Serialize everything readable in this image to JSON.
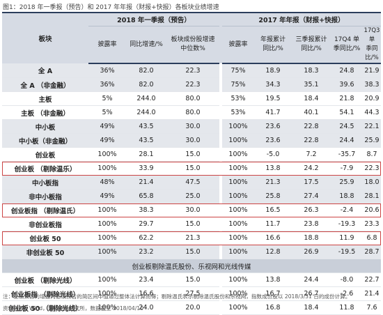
{
  "title": "图1：2018 年一季报（预告）和 2017 年年报（财报+快报）各板块业绩增速",
  "header": {
    "col0": "板块",
    "group1": "2018 年一季报（预告）",
    "group2": "2017 年年报（财报+快报）",
    "sub": [
      "披露率",
      "同比增速/%",
      "板块成份股增速\n中位数%",
      "披露率",
      "年报累计\n同比/%",
      "三季报累计\n同比/%",
      "17Q4 单\n季同比/%",
      "17Q3 单\n季同比/%"
    ]
  },
  "rows": [
    {
      "type": "gray",
      "cells": [
        "全 A",
        "36%",
        "82.0",
        "22.3",
        "75%",
        "18.9",
        "18.3",
        "24.8",
        "21.9"
      ]
    },
    {
      "type": "gray",
      "cells": [
        "全 A （非金融）",
        "36%",
        "82.0",
        "22.3",
        "75%",
        "34.3",
        "35.1",
        "39.6",
        "38.3"
      ]
    },
    {
      "type": "plain",
      "cells": [
        "主板",
        "5%",
        "244.0",
        "80.0",
        "53%",
        "19.5",
        "18.4",
        "21.8",
        "20.9"
      ]
    },
    {
      "type": "plain",
      "cells": [
        "主板 （非金融）",
        "5%",
        "244.0",
        "80.0",
        "53%",
        "41.7",
        "40.1",
        "54.1",
        "44.3"
      ]
    },
    {
      "type": "gray",
      "cells": [
        "中小板",
        "49%",
        "43.5",
        "30.0",
        "100%",
        "23.6",
        "22.8",
        "24.5",
        "22.1"
      ]
    },
    {
      "type": "gray",
      "cells": [
        "中小板（非金融）",
        "49%",
        "43.5",
        "30.0",
        "100%",
        "23.6",
        "22.8",
        "24.4",
        "25.9"
      ]
    },
    {
      "type": "plain",
      "cells": [
        "创业板",
        "100%",
        "28.1",
        "15.0",
        "100%",
        "-5.0",
        "7.2",
        "-35.7",
        "8.7"
      ]
    },
    {
      "type": "hl",
      "cells": [
        "创业板 （剔除温乐）",
        "100%",
        "33.9",
        "15.0",
        "100%",
        "13.8",
        "24.2",
        "-7.9",
        "22.3"
      ]
    },
    {
      "type": "gray",
      "cells": [
        "中小板指",
        "48%",
        "21.4",
        "47.5",
        "100%",
        "21.3",
        "17.5",
        "25.9",
        "18.0"
      ]
    },
    {
      "type": "gray",
      "cells": [
        "非中小板指",
        "49%",
        "65.8",
        "25.0",
        "100%",
        "25.8",
        "27.4",
        "18.8",
        "28.1"
      ]
    },
    {
      "type": "hl",
      "cells": [
        "创业板指 （剔除温氏）",
        "100%",
        "38.3",
        "30.0",
        "100%",
        "16.5",
        "26.3",
        "-2.4",
        "20.6"
      ]
    },
    {
      "type": "plain",
      "cells": [
        "非创业板指",
        "100%",
        "29.7",
        "15.0",
        "100%",
        "11.7",
        "23.8",
        "-19.3",
        "23.3"
      ]
    },
    {
      "type": "hl",
      "cells": [
        "创业板 50",
        "100%",
        "62.2",
        "21.3",
        "100%",
        "16.6",
        "18.8",
        "11.9",
        "6.8"
      ]
    },
    {
      "type": "gray",
      "cells": [
        "非创业板 50",
        "100%",
        "23.2",
        "15.0",
        "100%",
        "12.8",
        "26.9",
        "-19.5",
        "28.7"
      ]
    },
    {
      "type": "section",
      "cells": [
        "创业板剔除温氏股份、乐视网和光线传媒"
      ]
    },
    {
      "type": "plain",
      "cells": [
        "创业板 （剔除光线）",
        "100%",
        "23.4",
        "15.0",
        "100%",
        "13.8",
        "24.4",
        "-8.0",
        "22.7"
      ]
    },
    {
      "type": "plain",
      "cells": [
        "创业板指 （剔除光线）",
        "100%",
        "16.6",
        "27.5",
        "100%",
        "16.7",
        "26.7",
        "-2.6",
        "21.4"
      ]
    },
    {
      "type": "plain",
      "cells": [
        "创业板 50 （剔除光线）",
        "100%",
        "24.0",
        "20.0",
        "100%",
        "16.8",
        "18.4",
        "11.8",
        "7.6"
      ]
    }
  ],
  "footnote": "注：业绩预告的增速为业绩预告的简区间中值通过整体法计算而得；剔除温氏表示剔除温氏股份和乐视网，指数成份股以 2018/3/31 日的成份计算。",
  "source": "资料来源：Wind，天风证券研究所，数据截至 2018/04/10"
}
